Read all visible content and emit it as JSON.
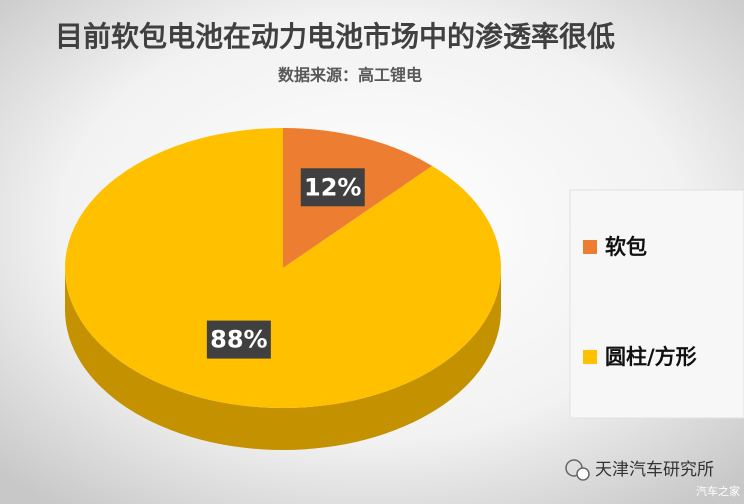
{
  "chart_data": {
    "type": "pie",
    "title": "目前软包电池在动力电池市场中的渗透率很低",
    "subtitle": "数据来源：高工锂电",
    "categories": [
      "软包",
      "圆柱/方形"
    ],
    "values": [
      12,
      88
    ],
    "value_labels": [
      "12%",
      "88%"
    ],
    "colors": [
      "#ED7D31",
      "#FFC000"
    ],
    "side_color": "#C49100",
    "legend": "right",
    "watermark": "天津汽车研究所",
    "source_mark": "汽车之家"
  }
}
